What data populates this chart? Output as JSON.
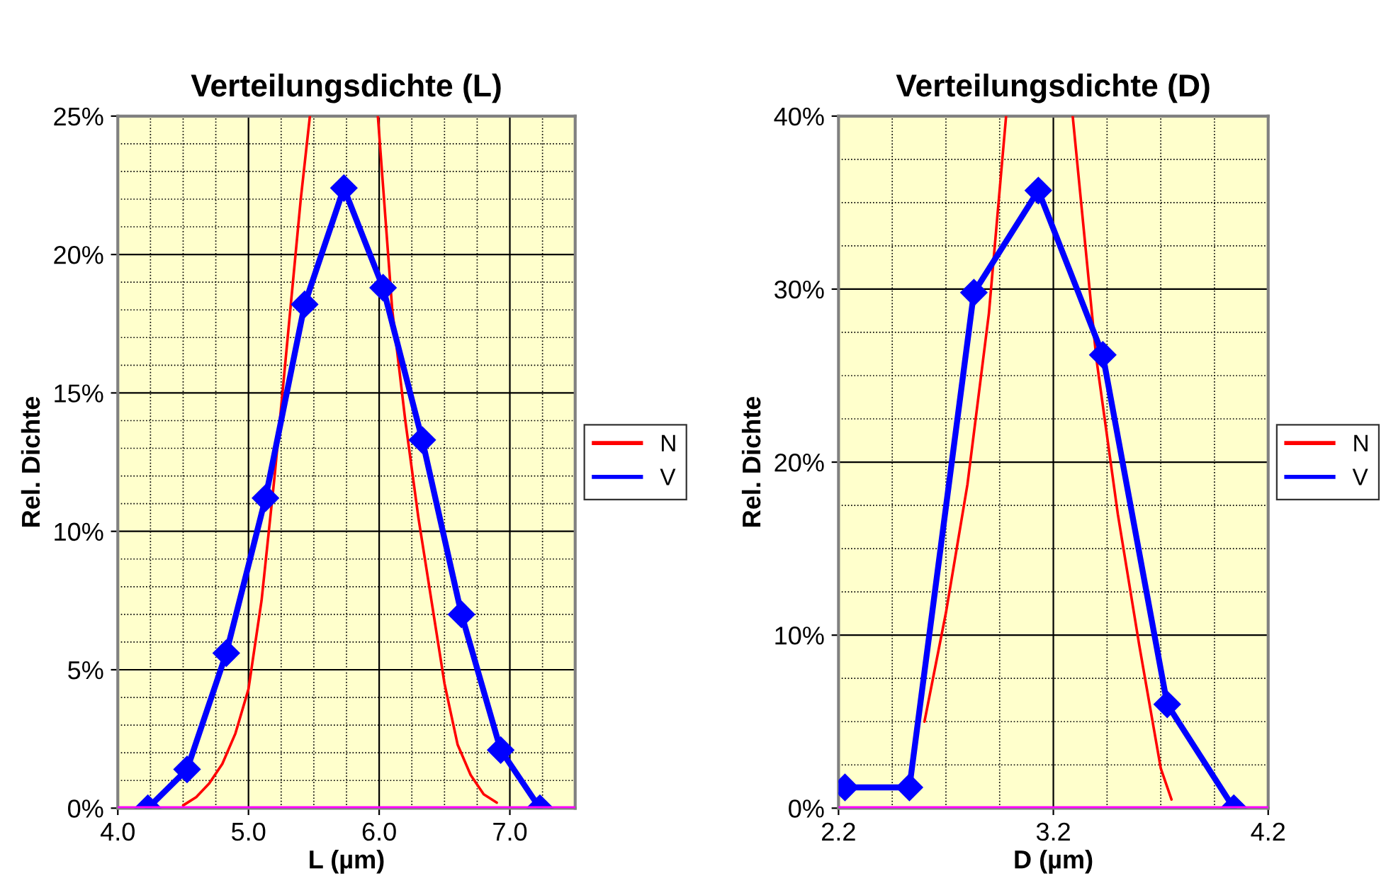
{
  "chart_data": [
    {
      "type": "line",
      "title": "Verteilungsdichte (L)",
      "xlabel": "L (µm)",
      "ylabel": "Rel. Dichte",
      "xlim": [
        4.0,
        7.5
      ],
      "xticks": [
        {
          "value": 4.0,
          "label": "4.0"
        },
        {
          "value": 4.25,
          "label": null
        },
        {
          "value": 4.5,
          "label": null
        },
        {
          "value": 4.75,
          "label": null
        },
        {
          "value": 5.0,
          "label": "5.0"
        },
        {
          "value": 5.25,
          "label": null
        },
        {
          "value": 5.5,
          "label": null
        },
        {
          "value": 5.75,
          "label": null
        },
        {
          "value": 6.0,
          "label": "6.0"
        },
        {
          "value": 6.25,
          "label": null
        },
        {
          "value": 6.5,
          "label": null
        },
        {
          "value": 6.75,
          "label": null
        },
        {
          "value": 7.0,
          "label": "7.0"
        },
        {
          "value": 7.25,
          "label": null
        }
      ],
      "ylim": [
        0,
        25
      ],
      "yticks": [
        {
          "value": 0,
          "label": "0%"
        },
        {
          "value": 1,
          "label": null
        },
        {
          "value": 2,
          "label": null
        },
        {
          "value": 3,
          "label": null
        },
        {
          "value": 4,
          "label": null
        },
        {
          "value": 5,
          "label": "5%"
        },
        {
          "value": 6,
          "label": null
        },
        {
          "value": 7,
          "label": null
        },
        {
          "value": 8,
          "label": null
        },
        {
          "value": 9,
          "label": null
        },
        {
          "value": 10,
          "label": "10%"
        },
        {
          "value": 11,
          "label": null
        },
        {
          "value": 12,
          "label": null
        },
        {
          "value": 13,
          "label": null
        },
        {
          "value": 14,
          "label": null
        },
        {
          "value": 15,
          "label": "15%"
        },
        {
          "value": 16,
          "label": null
        },
        {
          "value": 17,
          "label": null
        },
        {
          "value": 18,
          "label": null
        },
        {
          "value": 19,
          "label": null
        },
        {
          "value": 20,
          "label": "20%"
        },
        {
          "value": 21,
          "label": null
        },
        {
          "value": 22,
          "label": null
        },
        {
          "value": 23,
          "label": null
        },
        {
          "value": 24,
          "label": null
        },
        {
          "value": 25,
          "label": "25%"
        }
      ],
      "grid": true,
      "legend": "right",
      "ref_lines": [
        {
          "axis": "y",
          "value": 0,
          "color": "#ff00ff"
        }
      ],
      "series": [
        {
          "name": "N",
          "color": "#ff0000",
          "marker": "none",
          "x": [
            4.5,
            4.6,
            4.7,
            4.8,
            4.9,
            5.0,
            5.1,
            5.2,
            5.3,
            5.4,
            5.47,
            5.73,
            5.99,
            6.1,
            6.2,
            6.3,
            6.4,
            6.5,
            6.6,
            6.7,
            6.8,
            6.9
          ],
          "values": [
            0.1,
            0.4,
            0.9,
            1.6,
            2.7,
            4.3,
            7.5,
            12,
            17,
            22,
            25,
            null,
            25,
            18,
            14,
            10.5,
            7.5,
            4.5,
            2.3,
            1.2,
            0.5,
            0.2
          ]
        },
        {
          "name": "V",
          "color": "#0000ff",
          "marker": "diamond",
          "x": [
            4.23,
            4.53,
            4.83,
            5.13,
            5.43,
            5.73,
            6.03,
            6.33,
            6.63,
            6.93,
            7.23
          ],
          "values": [
            0,
            1.4,
            5.6,
            11.2,
            18.2,
            22.4,
            18.8,
            13.3,
            7.0,
            2.1,
            0
          ]
        }
      ]
    },
    {
      "type": "line",
      "title": "Verteilungsdichte (D)",
      "xlabel": "D (µm)",
      "ylabel": "Rel. Dichte",
      "xlim": [
        2.2,
        4.2
      ],
      "xticks": [
        2.2,
        {
          "value": 2.45,
          "label": null
        },
        {
          "value": 2.7,
          "label": null
        },
        {
          "value": 2.95,
          "label": null
        },
        3.2,
        {
          "value": 3.45,
          "label": null
        },
        {
          "value": 3.7,
          "label": null
        },
        {
          "value": 3.95,
          "label": null
        },
        4.2
      ],
      "ylim": [
        0,
        40
      ],
      "yticks": [
        {
          "value": 0,
          "label": "0%"
        },
        {
          "value": 2.5,
          "label": null
        },
        {
          "value": 5,
          "label": null
        },
        {
          "value": 7.5,
          "label": null
        },
        {
          "value": 10,
          "label": "10%"
        },
        {
          "value": 12.5,
          "label": null
        },
        {
          "value": 15,
          "label": null
        },
        {
          "value": 17.5,
          "label": null
        },
        {
          "value": 20,
          "label": "20%"
        },
        {
          "value": 22.5,
          "label": null
        },
        {
          "value": 25,
          "label": null
        },
        {
          "value": 27.5,
          "label": null
        },
        {
          "value": 30,
          "label": "30%"
        },
        {
          "value": 32.5,
          "label": null
        },
        {
          "value": 35,
          "label": null
        },
        {
          "value": 37.5,
          "label": null
        },
        {
          "value": 40,
          "label": "40%"
        }
      ],
      "grid": true,
      "legend": "right",
      "ref_lines": [
        {
          "axis": "y",
          "value": 0,
          "color": "#ff00ff"
        }
      ],
      "series": [
        {
          "name": "N",
          "color": "#ff0000",
          "marker": "none",
          "x": [
            2.6,
            2.7,
            2.8,
            2.9,
            2.98,
            3.14,
            3.29,
            3.4,
            3.5,
            3.6,
            3.7,
            3.75
          ],
          "values": [
            5,
            11.3,
            18.7,
            28.6,
            40,
            null,
            40,
            26,
            17,
            9.4,
            2.3,
            0.5
          ]
        },
        {
          "name": "V",
          "color": "#0000ff",
          "marker": "diamond",
          "x": [
            2.23,
            2.53,
            2.83,
            3.13,
            3.43,
            3.73,
            4.04
          ],
          "values": [
            1.2,
            1.2,
            29.8,
            35.7,
            26.2,
            6.0,
            0
          ]
        }
      ]
    }
  ]
}
